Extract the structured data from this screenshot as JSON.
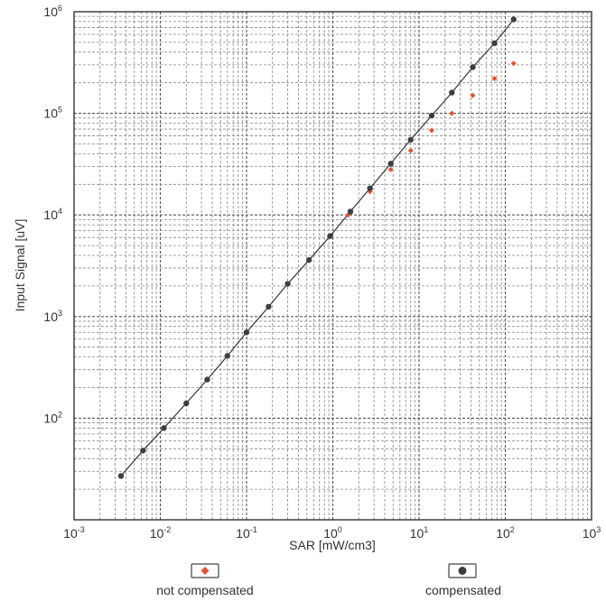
{
  "chart_data": {
    "type": "scatter",
    "title": "",
    "xlabel": "SAR [mW/cm3]",
    "ylabel": "Input Signal [uV]",
    "x_scale": "log",
    "y_scale": "log",
    "xlim": [
      0.001,
      1000
    ],
    "ylim": [
      10,
      1000000
    ],
    "x_ticks": [
      {
        "base": "10",
        "exp": "-3"
      },
      {
        "base": "10",
        "exp": "-2"
      },
      {
        "base": "10",
        "exp": "-1"
      },
      {
        "base": "10",
        "exp": "0"
      },
      {
        "base": "10",
        "exp": "1"
      },
      {
        "base": "10",
        "exp": "2"
      },
      {
        "base": "10",
        "exp": "3"
      }
    ],
    "y_ticks": [
      {
        "base": "10",
        "exp": "2"
      },
      {
        "base": "10",
        "exp": "3"
      },
      {
        "base": "10",
        "exp": "4"
      },
      {
        "base": "10",
        "exp": "5"
      },
      {
        "base": "10",
        "exp": "6"
      }
    ],
    "grid": true,
    "legend_position": "bottom",
    "series": [
      {
        "name": "not compensated",
        "color": "#e8502e",
        "marker": "diamond",
        "x": [
          1.5,
          2.7,
          4.7,
          8.0,
          14,
          24,
          42,
          75,
          125
        ],
        "y": [
          10000,
          17000,
          28000,
          43000,
          68000,
          100000,
          150000,
          220000,
          310000
        ]
      },
      {
        "name": "compensated",
        "color": "#3a3f44",
        "marker": "circle",
        "x": [
          0.0035,
          0.0063,
          0.011,
          0.02,
          0.035,
          0.06,
          0.1,
          0.18,
          0.3,
          0.53,
          0.93,
          1.6,
          2.7,
          4.7,
          8.0,
          14,
          24,
          42,
          75,
          125
        ],
        "y": [
          27,
          48,
          80,
          140,
          240,
          410,
          700,
          1250,
          2100,
          3600,
          6200,
          10800,
          18300,
          32000,
          55000,
          95000,
          160000,
          285000,
          490000,
          840000
        ]
      }
    ],
    "fit_line": {
      "color": "#333333"
    }
  }
}
